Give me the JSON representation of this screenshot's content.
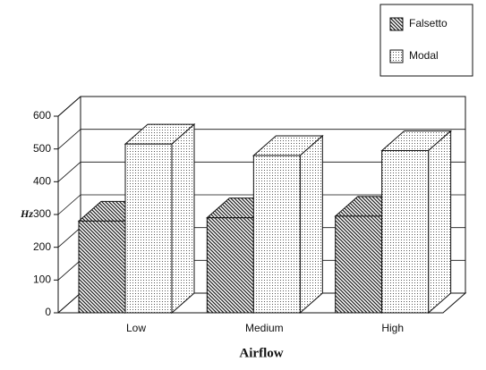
{
  "chart_data": {
    "type": "bar3d",
    "categories": [
      "Low",
      "Medium",
      "High"
    ],
    "series": [
      {
        "name": "Falsetto",
        "color": "#222222",
        "pattern": "hatch",
        "values": [
          280,
          290,
          295
        ]
      },
      {
        "name": "Modal",
        "color": "#555555",
        "pattern": "dots",
        "values": [
          515,
          480,
          495
        ]
      }
    ],
    "ylim": [
      0,
      600
    ],
    "yticks": [
      0,
      100,
      200,
      300,
      400,
      500,
      600
    ],
    "y_label": "Hz",
    "x_label": "Airflow",
    "grid": true,
    "legend": "top-right"
  }
}
